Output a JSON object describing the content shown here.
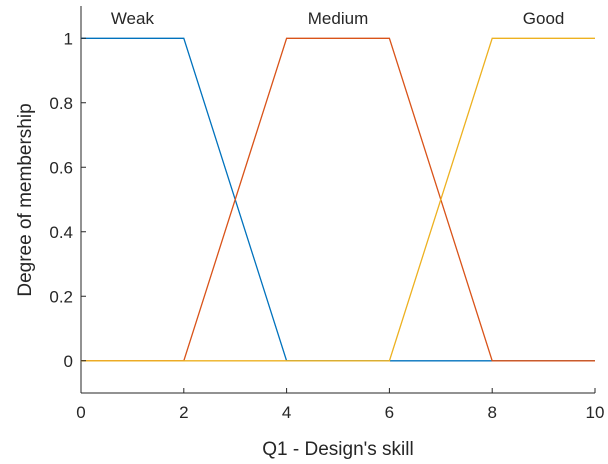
{
  "chart_data": {
    "type": "line",
    "title": "",
    "xlabel": "Q1 - Design's skill",
    "ylabel": "Degree of membership",
    "xlim": [
      0,
      10
    ],
    "ylim": [
      -0.1,
      1.1
    ],
    "xticks": [
      "0",
      "2",
      "4",
      "6",
      "8",
      "10"
    ],
    "yticks": [
      "0",
      "0.2",
      "0.4",
      "0.6",
      "0.8",
      "1"
    ],
    "grid": false,
    "series": [
      {
        "name": "Weak",
        "color": "#0072BD",
        "x": [
          0,
          2,
          4,
          10
        ],
        "y": [
          1,
          1,
          0,
          0
        ]
      },
      {
        "name": "Medium",
        "color": "#D95319",
        "x": [
          0,
          2,
          4,
          6,
          8,
          10
        ],
        "y": [
          0,
          0,
          1,
          1,
          0,
          0
        ]
      },
      {
        "name": "Good",
        "color": "#EDB120",
        "x": [
          0,
          6,
          8,
          10
        ],
        "y": [
          0,
          0,
          1,
          1
        ]
      }
    ],
    "annotations": [
      {
        "text": "Weak",
        "x": 1.0,
        "y": 1.05
      },
      {
        "text": "Medium",
        "x": 5.0,
        "y": 1.05
      },
      {
        "text": "Good",
        "x": 9.0,
        "y": 1.05
      }
    ]
  }
}
